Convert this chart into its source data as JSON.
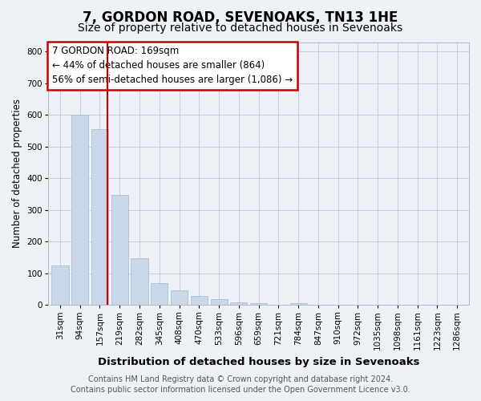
{
  "title1": "7, GORDON ROAD, SEVENOAKS, TN13 1HE",
  "title2": "Size of property relative to detached houses in Sevenoaks",
  "xlabel": "Distribution of detached houses by size in Sevenoaks",
  "ylabel": "Number of detached properties",
  "bar_labels": [
    "31sqm",
    "94sqm",
    "157sqm",
    "219sqm",
    "282sqm",
    "345sqm",
    "408sqm",
    "470sqm",
    "533sqm",
    "596sqm",
    "659sqm",
    "721sqm",
    "784sqm",
    "847sqm",
    "910sqm",
    "972sqm",
    "1035sqm",
    "1098sqm",
    "1161sqm",
    "1223sqm",
    "1286sqm"
  ],
  "bar_values": [
    125,
    600,
    555,
    348,
    148,
    70,
    48,
    28,
    20,
    8,
    5,
    0,
    5,
    0,
    0,
    0,
    0,
    0,
    0,
    0,
    0
  ],
  "bar_color": "#c8d8e8",
  "bar_edge_color": "#a0b8cc",
  "annotation_line1": "7 GORDON ROAD: 169sqm",
  "annotation_line2": "← 44% of detached houses are smaller (864)",
  "annotation_line3": "56% of semi-detached houses are larger (1,086) →",
  "annotation_box_color": "#cc0000",
  "vline_x_index": 2.38,
  "vline_color": "#cc0000",
  "ylim": [
    0,
    830
  ],
  "yticks": [
    0,
    100,
    200,
    300,
    400,
    500,
    600,
    700,
    800
  ],
  "background_color": "#eef2f7",
  "plot_background": "#eef2f7",
  "footer_line1": "Contains HM Land Registry data © Crown copyright and database right 2024.",
  "footer_line2": "Contains public sector information licensed under the Open Government Licence v3.0.",
  "title1_fontsize": 12,
  "title2_fontsize": 10,
  "xlabel_fontsize": 9.5,
  "ylabel_fontsize": 8.5,
  "tick_fontsize": 7.5,
  "annotation_fontsize": 8.5,
  "footer_fontsize": 7
}
